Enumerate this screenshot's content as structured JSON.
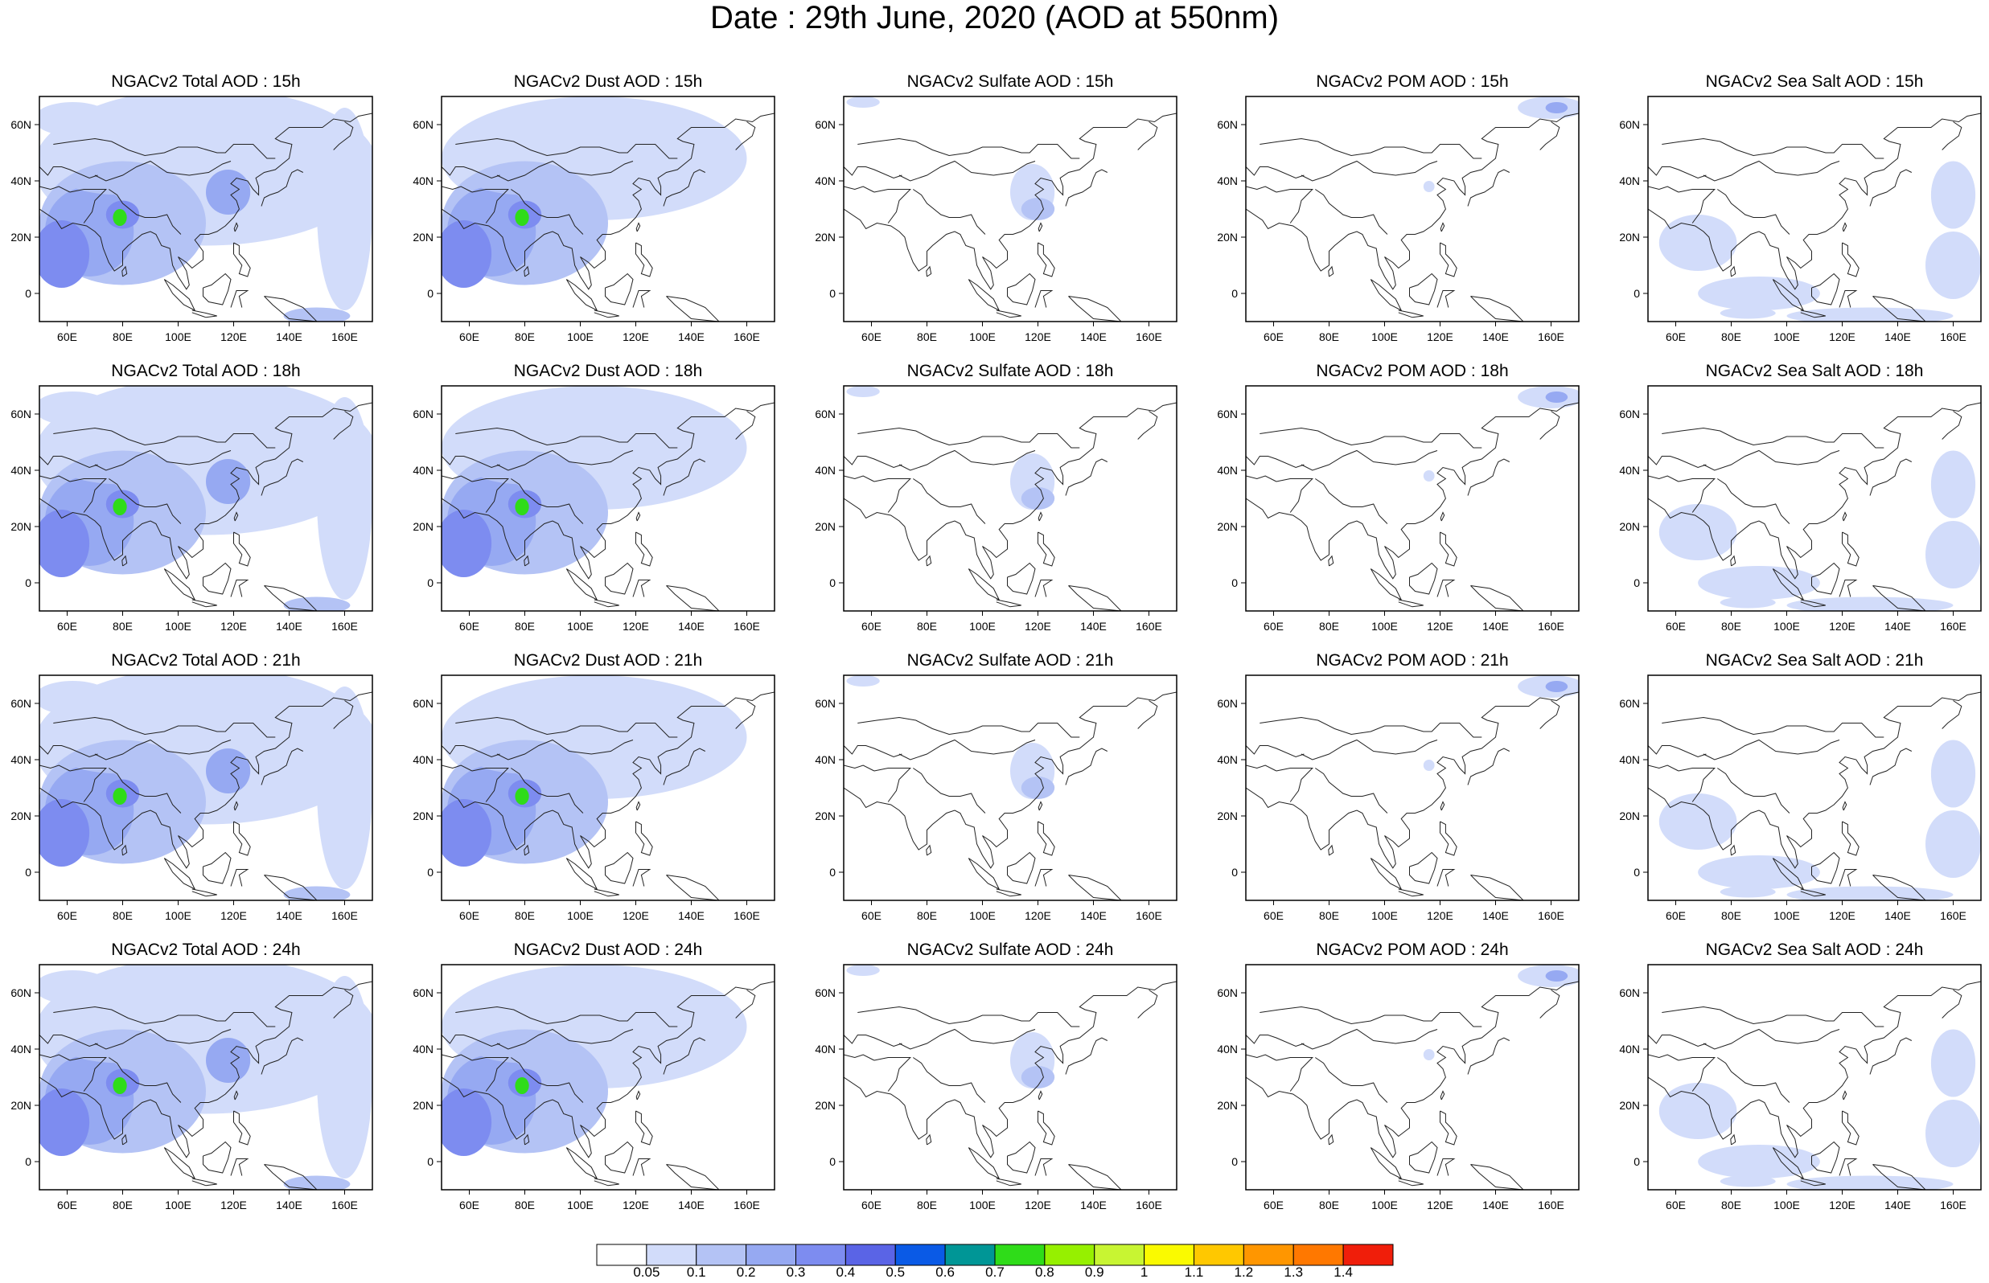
{
  "title": "Date : 29th June, 2020 (AOD at 550nm)",
  "colorbar": {
    "labels": [
      "0.05",
      "0.1",
      "0.2",
      "0.3",
      "0.4",
      "0.5",
      "0.6",
      "0.7",
      "0.8",
      "0.9",
      "1",
      "1.1",
      "1.2",
      "1.3",
      "1.4"
    ],
    "colors": [
      "#ffffff",
      "#d2dcfa",
      "#b4c3f5",
      "#96a9f2",
      "#7d8cf0",
      "#5a64e6",
      "#0a5ae6",
      "#009696",
      "#2fdc19",
      "#96f000",
      "#c8f532",
      "#fafa00",
      "#ffc800",
      "#ff9600",
      "#ff7800",
      "#f01e0a"
    ]
  },
  "map": {
    "lon_range": [
      50,
      170
    ],
    "lat_range": [
      -10,
      70
    ],
    "x_tick_labels": [
      "60E",
      "80E",
      "100E",
      "120E",
      "140E",
      "160E"
    ],
    "y_tick_labels": [
      "60N",
      "40N",
      "20N",
      "0"
    ]
  },
  "rows": [
    {
      "hour": "15h",
      "panels": [
        {
          "title": "NGACv2 Total AOD : 15h",
          "type": "total"
        },
        {
          "title": "NGACv2 Dust AOD : 15h",
          "type": "dust"
        },
        {
          "title": "NGACv2 Sulfate AOD : 15h",
          "type": "sulfate"
        },
        {
          "title": "NGACv2 POM AOD : 15h",
          "type": "pom"
        },
        {
          "title": "NGACv2 Sea Salt AOD : 15h",
          "type": "seasalt"
        }
      ]
    },
    {
      "hour": "18h",
      "panels": [
        {
          "title": "NGACv2 Total AOD : 18h",
          "type": "total"
        },
        {
          "title": "NGACv2 Dust AOD : 18h",
          "type": "dust"
        },
        {
          "title": "NGACv2 Sulfate AOD : 18h",
          "type": "sulfate"
        },
        {
          "title": "NGACv2 POM AOD : 18h",
          "type": "pom"
        },
        {
          "title": "NGACv2 Sea Salt AOD : 18h",
          "type": "seasalt"
        }
      ]
    },
    {
      "hour": "21h",
      "panels": [
        {
          "title": "NGACv2 Total AOD : 21h",
          "type": "total"
        },
        {
          "title": "NGACv2 Dust AOD : 21h",
          "type": "dust"
        },
        {
          "title": "NGACv2 Sulfate AOD : 21h",
          "type": "sulfate"
        },
        {
          "title": "NGACv2 POM AOD : 21h",
          "type": "pom"
        },
        {
          "title": "NGACv2 Sea Salt AOD : 21h",
          "type": "seasalt"
        }
      ]
    },
    {
      "hour": "24h",
      "panels": [
        {
          "title": "NGACv2 Total AOD : 24h",
          "type": "total"
        },
        {
          "title": "NGACv2 Dust AOD : 24h",
          "type": "dust"
        },
        {
          "title": "NGACv2 Sulfate AOD : 24h",
          "type": "sulfate"
        },
        {
          "title": "NGACv2 POM AOD : 24h",
          "type": "pom"
        },
        {
          "title": "NGACv2 Sea Salt  AOD : 24h",
          "type": "seasalt"
        }
      ]
    }
  ]
}
